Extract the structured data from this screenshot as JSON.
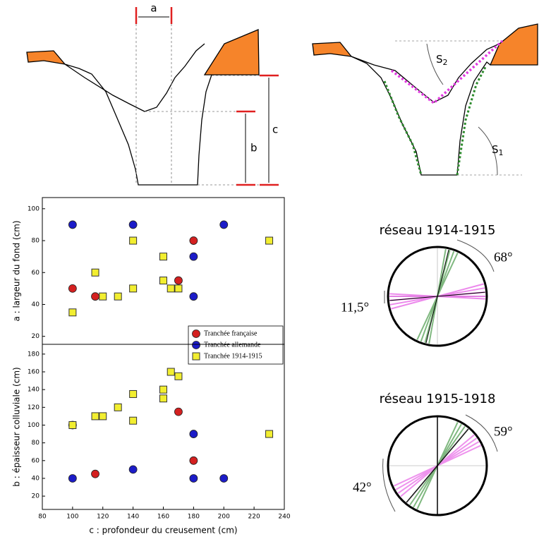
{
  "chart_data": [
    {
      "type": "scatter",
      "ylabel": "a : largeur du fond (cm)",
      "xlim": [
        80,
        240
      ],
      "ylim": [
        15,
        107
      ],
      "yticks": [
        20,
        40,
        60,
        80,
        100
      ],
      "legend": "lower right",
      "series": [
        {
          "name": "Tranchée française",
          "color": "#d42020",
          "marker": "circle",
          "x": [
            100,
            115,
            170,
            180
          ],
          "values": [
            50,
            45,
            55,
            80
          ]
        },
        {
          "name": "Tranchée allemande",
          "color": "#1c1cc8",
          "marker": "circle",
          "x": [
            100,
            140,
            180,
            180,
            200
          ],
          "values": [
            90,
            90,
            70,
            45,
            90
          ]
        },
        {
          "name": "Tranchée 1914-1915",
          "color": "#f2ee30",
          "marker": "square",
          "x": [
            100,
            115,
            120,
            130,
            140,
            140,
            160,
            160,
            165,
            170,
            230
          ],
          "values": [
            35,
            60,
            45,
            45,
            80,
            50,
            70,
            55,
            50,
            50,
            80
          ]
        }
      ]
    },
    {
      "type": "scatter",
      "ylabel": "b : épaisseur colluviale (cm)",
      "xlabel": "c : profondeur du creusement (cm)",
      "xlim": [
        80,
        240
      ],
      "xticks": [
        80,
        100,
        120,
        140,
        160,
        180,
        200,
        220,
        240
      ],
      "ylim": [
        5,
        191
      ],
      "yticks": [
        20,
        40,
        60,
        80,
        100,
        120,
        140,
        160,
        180
      ],
      "series": [
        {
          "color": "#d42020",
          "marker": "circle",
          "x": [
            100,
            115,
            170,
            180
          ],
          "values": [
            100,
            45,
            115,
            60
          ]
        },
        {
          "color": "#1c1cc8",
          "marker": "circle",
          "x": [
            100,
            140,
            180,
            180,
            200
          ],
          "values": [
            40,
            50,
            90,
            40,
            40
          ]
        },
        {
          "color": "#f2ee30",
          "marker": "square",
          "x": [
            100,
            115,
            120,
            130,
            140,
            140,
            160,
            160,
            165,
            170,
            230
          ],
          "values": [
            100,
            110,
            110,
            120,
            135,
            105,
            140,
            130,
            160,
            155,
            90
          ]
        }
      ]
    }
  ],
  "diagram": {
    "labels": [
      "a",
      "b",
      "c"
    ],
    "s2": {
      "main": "S",
      "sub": "2"
    },
    "s1": {
      "main": "S",
      "sub": "1"
    },
    "rose1": {
      "title": "réseau 1914-1915",
      "angle_right": "68°",
      "angle_left": "11,5°"
    },
    "rose2": {
      "title": "réseau 1915-1918",
      "angle_right": "59°",
      "angle_left": "42°"
    }
  }
}
